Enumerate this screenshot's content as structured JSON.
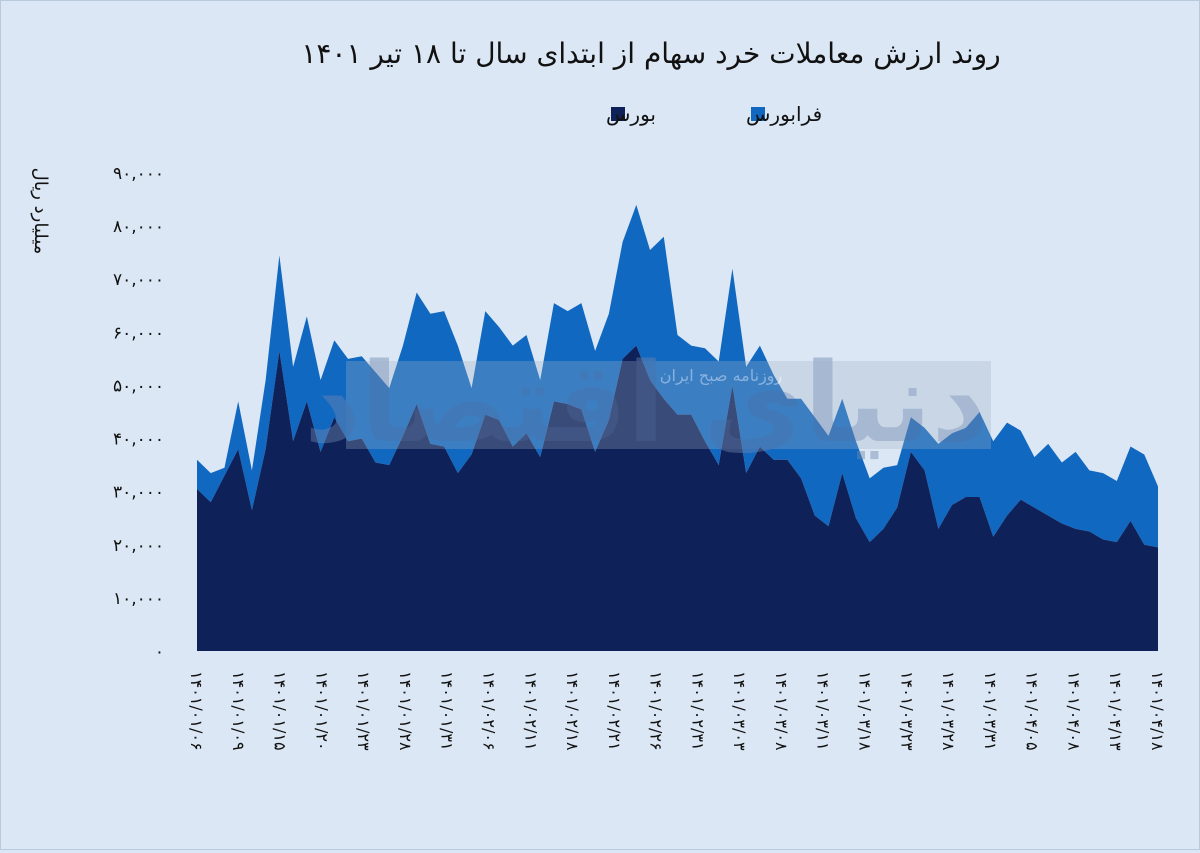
{
  "chart_data": {
    "type": "area",
    "title": "روند ارزش معاملات خرد سهام از ابتدای سال تا ۱۸ تیر ۱۴۰۱",
    "ylabel": "میلیارد ریال",
    "xlabel": "",
    "ylim": [
      0,
      90000
    ],
    "stacked": true,
    "legend_position": "top-center",
    "grid": false,
    "yticks": [
      "۰",
      "۱۰,۰۰۰",
      "۲۰,۰۰۰",
      "۳۰,۰۰۰",
      "۴۰,۰۰۰",
      "۵۰,۰۰۰",
      "۶۰,۰۰۰",
      "۷۰,۰۰۰",
      "۸۰,۰۰۰",
      "۹۰,۰۰۰"
    ],
    "xtick_labels": [
      "۱۴۰۱/۰۱/۰۶",
      "۱۴۰۱/۰۱/۰۹",
      "۱۴۰۱/۰۱/۱۵",
      "۱۴۰۱/۰۱/۲۰",
      "۱۴۰۱/۰۱/۲۳",
      "۱۴۰۱/۰۱/۲۸",
      "۱۴۰۱/۰۱/۳۱",
      "۱۴۰۱/۰۲/۰۶",
      "۱۴۰۱/۰۲/۱۱",
      "۱۴۰۱/۰۲/۱۸",
      "۱۴۰۱/۰۲/۲۱",
      "۱۴۰۱/۰۲/۲۶",
      "۱۴۰۱/۰۲/۳۱",
      "۱۴۰۱/۰۳/۰۳",
      "۱۴۰۱/۰۳/۰۸",
      "۱۴۰۱/۰۳/۱۱",
      "۱۴۰۱/۰۳/۱۸",
      "۱۴۰۱/۰۳/۲۳",
      "۱۴۰۱/۰۳/۲۸",
      "۱۴۰۱/۰۳/۳۱",
      "۱۴۰۱/۰۴/۰۵",
      "۱۴۰۱/۰۴/۰۸",
      "۱۴۰۱/۰۴/۱۳",
      "۱۴۰۱/۰۴/۱۸"
    ],
    "series": [
      {
        "name": "بورس",
        "color": "#0e2158",
        "values": [
          30500,
          28000,
          33000,
          38000,
          26500,
          38000,
          56500,
          39500,
          47000,
          37500,
          44000,
          39500,
          40000,
          35500,
          35000,
          40500,
          46500,
          39000,
          38500,
          33500,
          37000,
          44500,
          43500,
          38500,
          41000,
          36500,
          47000,
          46500,
          45500,
          37500,
          43500,
          55000,
          57500,
          51000,
          47500,
          44500,
          44500,
          39500,
          35000,
          50000,
          33500,
          38500,
          36000,
          36000,
          32500,
          25500,
          23500,
          33500,
          25000,
          20500,
          23000,
          27000,
          37500,
          34000,
          23000,
          27500,
          29000,
          29000,
          21500,
          25500,
          28500,
          27000,
          25500,
          24000,
          23000,
          22500,
          21000,
          20500,
          24500,
          20000,
          19500
        ]
      },
      {
        "name": "فرابورس",
        "color": "#1168c1",
        "values": [
          5500,
          5500,
          1500,
          9000,
          7500,
          13000,
          18000,
          14000,
          16000,
          13500,
          14500,
          15500,
          15500,
          17000,
          14500,
          17000,
          21000,
          24500,
          25500,
          24000,
          12500,
          19500,
          17500,
          19000,
          18500,
          14500,
          18500,
          17500,
          20000,
          19000,
          20000,
          22000,
          26500,
          24500,
          30500,
          15000,
          13000,
          17500,
          19500,
          22000,
          20000,
          19000,
          16000,
          11500,
          15000,
          18500,
          17000,
          14000,
          14500,
          12000,
          11500,
          8000,
          6500,
          8000,
          16000,
          13500,
          13000,
          16000,
          18000,
          17500,
          13000,
          9500,
          13500,
          11500,
          14500,
          11500,
          12500,
          11500,
          14000,
          17000,
          11500
        ]
      }
    ]
  },
  "watermark": {
    "logo_text": "دنیای اقتصاد",
    "tagline": "روزنامه صبح ایران"
  }
}
